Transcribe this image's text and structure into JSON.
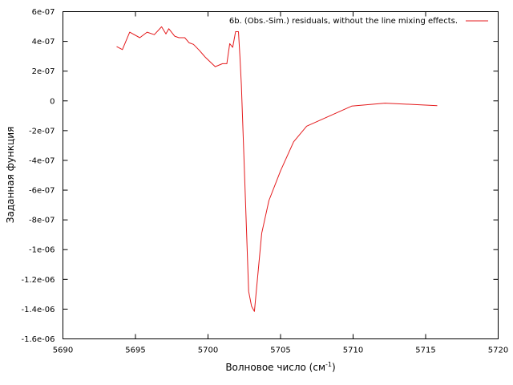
{
  "chart_data": {
    "type": "line",
    "xlabel": "Волновое число (см",
    "xlabel_sup": "-1",
    "xlabel_close": ")",
    "ylabel": "Заданная функция",
    "xlim": [
      5690,
      5720
    ],
    "ylim": [
      -1.6e-06,
      6e-07
    ],
    "x_ticks": [
      5690,
      5695,
      5700,
      5705,
      5710,
      5715,
      5720
    ],
    "x_tick_labels": [
      "5690",
      "5695",
      "5700",
      "5705",
      "5710",
      "5715",
      "5720"
    ],
    "y_ticks": [
      6e-07,
      4e-07,
      2e-07,
      0,
      -2e-07,
      -4e-07,
      -6e-07,
      -8e-07,
      -1e-06,
      -1.2e-06,
      -1.4e-06,
      -1.6e-06
    ],
    "y_tick_labels": [
      "6e-07",
      "4e-07",
      "2e-07",
      "0",
      "-2e-07",
      "-4e-07",
      "-6e-07",
      "-8e-07",
      "-1e-06",
      "-1.2e-06",
      "-1.4e-06",
      "-1.6e-06"
    ],
    "grid": false,
    "legend_position": "top-right",
    "series": [
      {
        "name": "6b. (Obs.-Sim.) residuals, without the line mixing effects.",
        "color": "#e41a1c",
        "x": [
          5693.7,
          5694.1,
          5694.6,
          5695.3,
          5695.8,
          5696.3,
          5696.8,
          5697.1,
          5697.3,
          5697.7,
          5698.0,
          5698.4,
          5698.7,
          5699.0,
          5699.4,
          5699.8,
          5700.5,
          5701.0,
          5701.3,
          5701.5,
          5701.7,
          5701.9,
          5702.1,
          5702.2,
          5702.3,
          5702.5,
          5702.8,
          5703.0,
          5703.2,
          5703.7,
          5704.2,
          5705.0,
          5705.9,
          5706.8,
          5709.9,
          5712.2,
          5715.8
        ],
        "y": [
          3.65e-07,
          3.45e-07,
          4.62e-07,
          4.25e-07,
          4.62e-07,
          4.45e-07,
          4.98e-07,
          4.5e-07,
          4.85e-07,
          4.35e-07,
          4.25e-07,
          4.25e-07,
          3.9e-07,
          3.8e-07,
          3.4e-07,
          2.95e-07,
          2.3e-07,
          2.5e-07,
          2.5e-07,
          3.85e-07,
          3.6e-07,
          4.65e-07,
          4.65e-07,
          3e-07,
          1.1e-07,
          -4.5e-07,
          -1.28e-06,
          -1.38e-06,
          -1.415e-06,
          -8.9e-07,
          -6.7e-07,
          -4.7e-07,
          -2.75e-07,
          -1.7e-07,
          -3.5e-08,
          -1.5e-08,
          -3.2e-08
        ]
      }
    ]
  }
}
